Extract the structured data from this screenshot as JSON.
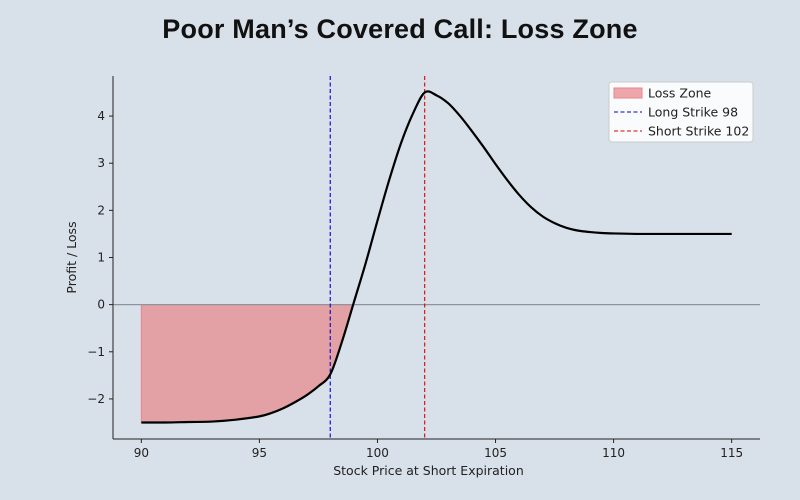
{
  "page": {
    "title": "Poor Man’s Covered Call: Loss Zone"
  },
  "colors": {
    "background": "#d8e0e9",
    "pnl_line": "#000000",
    "loss_fill": "#e8868a",
    "long_strike": "#0000cc",
    "short_strike": "#dd0000",
    "zero_line": "#8c959d"
  },
  "chart_data": {
    "type": "line",
    "title": "Poor Man’s Covered Call: Loss Zone",
    "xlabel": "Stock Price at Short Expiration",
    "ylabel": "Profit / Loss",
    "xlim": [
      88.8,
      116.2
    ],
    "ylim": [
      -2.85,
      4.85
    ],
    "xticks": [
      90,
      95,
      100,
      105,
      110,
      115
    ],
    "yticks": [
      -2,
      -1,
      0,
      1,
      2,
      3,
      4
    ],
    "ytick_labels": [
      "−2",
      "−1",
      "0",
      "1",
      "2",
      "3",
      "4"
    ],
    "series": [
      {
        "name": "P/L",
        "x": [
          90,
          91,
          92,
          93,
          94,
          95,
          95.5,
          96,
          96.5,
          97,
          97.5,
          98,
          98.5,
          99,
          99.5,
          100,
          100.5,
          101,
          101.5,
          102,
          102.5,
          103,
          103.5,
          104,
          104.5,
          105,
          105.5,
          106,
          106.5,
          107,
          107.5,
          108,
          108.5,
          109,
          109.5,
          110,
          111,
          112,
          113,
          114,
          115
        ],
        "y": [
          -2.5,
          -2.5,
          -2.49,
          -2.48,
          -2.44,
          -2.37,
          -2.3,
          -2.2,
          -2.07,
          -1.92,
          -1.73,
          -1.48,
          -0.78,
          0.05,
          0.88,
          1.78,
          2.65,
          3.43,
          4.05,
          4.5,
          4.44,
          4.27,
          4.0,
          3.68,
          3.34,
          2.98,
          2.64,
          2.33,
          2.07,
          1.87,
          1.73,
          1.63,
          1.57,
          1.54,
          1.52,
          1.51,
          1.5,
          1.5,
          1.5,
          1.5,
          1.5
        ]
      }
    ],
    "loss_zone": {
      "x_start": 90,
      "x_end": 98.97
    },
    "vlines": [
      {
        "name": "Long Strike 98",
        "x": 98
      },
      {
        "name": "Short Strike 102",
        "x": 102
      }
    ],
    "hline": {
      "y": 0
    },
    "legend": {
      "placement": "top-right",
      "entries": [
        "Loss Zone",
        "Long Strike 98",
        "Short Strike 102"
      ]
    }
  }
}
